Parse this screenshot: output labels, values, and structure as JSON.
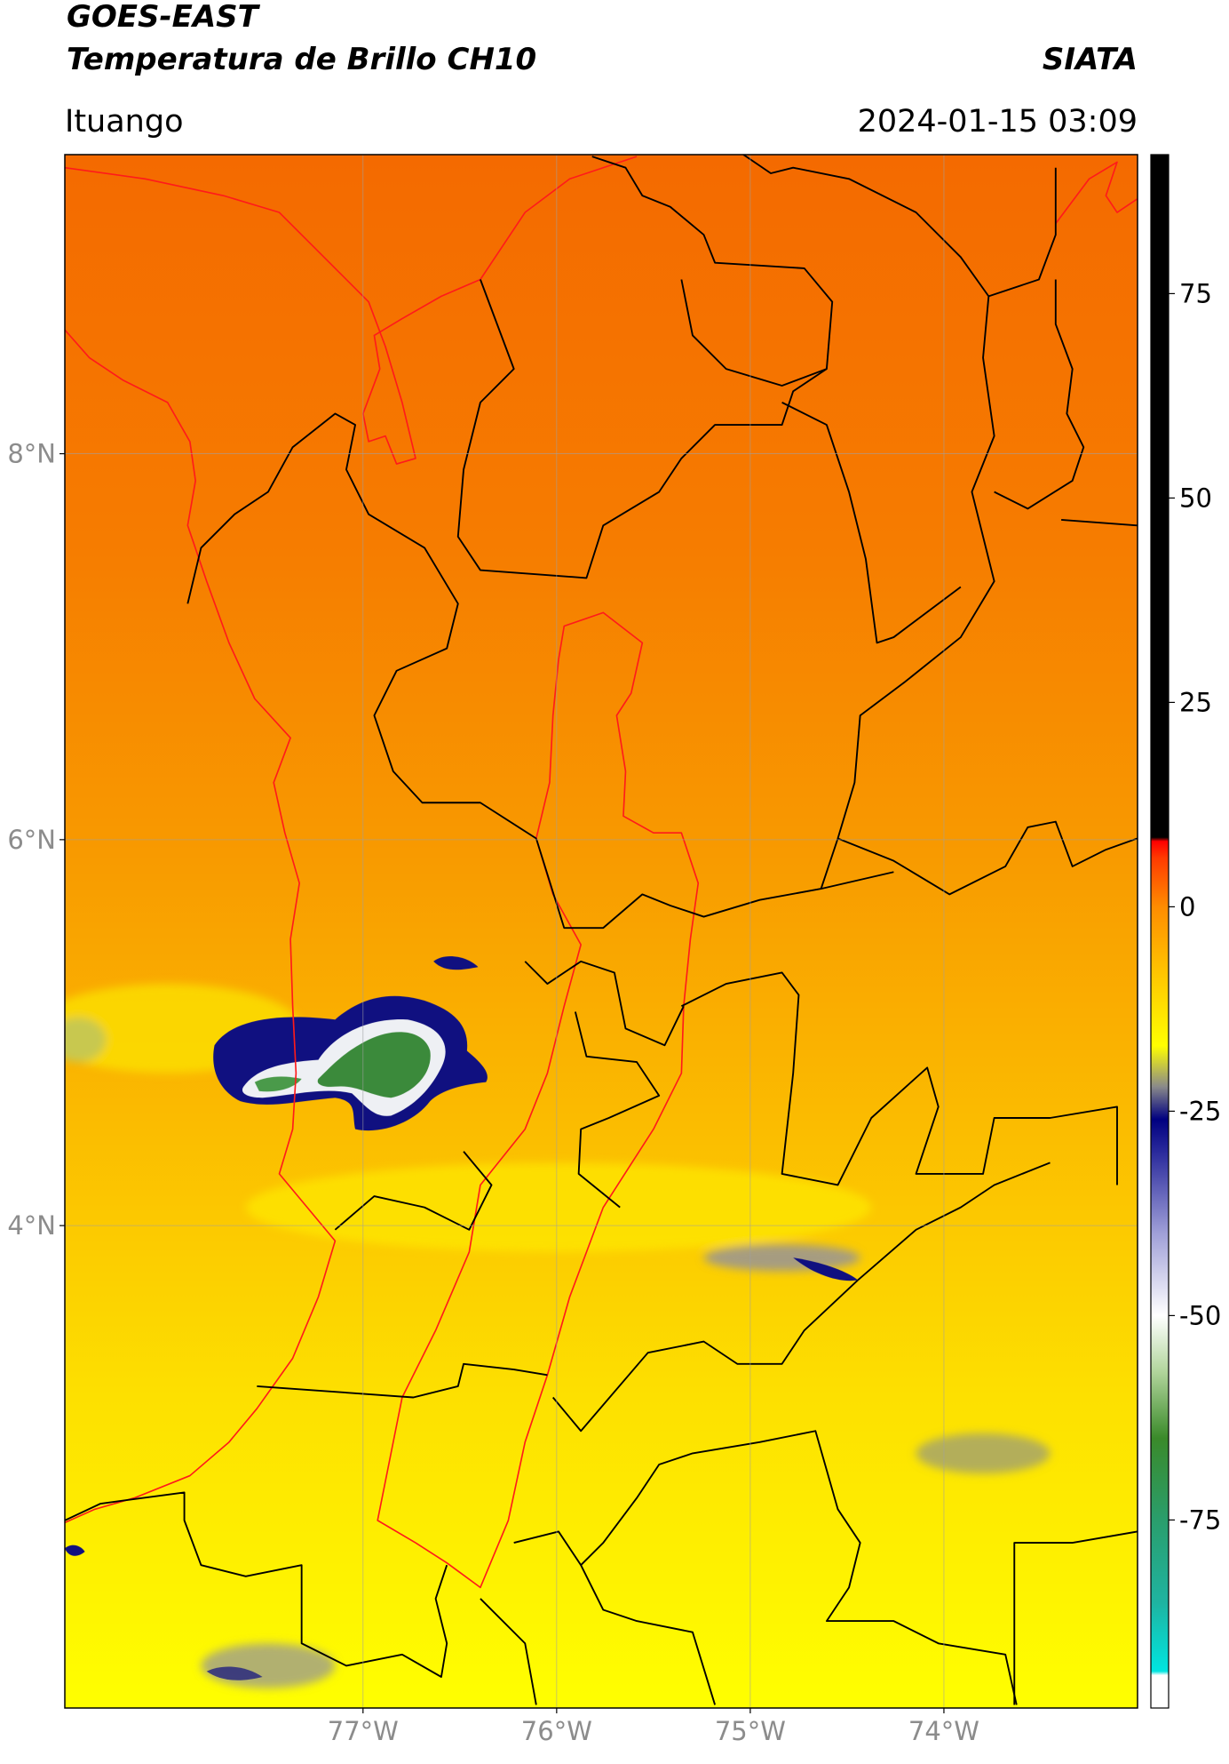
{
  "header": {
    "title_line1": "GOES-EAST",
    "title_line2": "Temperatura de Brillo CH10",
    "source": "SIATA",
    "location": "Ituango",
    "timestamp": "2024-01-15 03:09"
  },
  "map": {
    "extent": {
      "lon": [
        -78.54,
        -73.0
      ],
      "lat": [
        1.5,
        9.55
      ]
    },
    "lat_lines": [
      {
        "value": 8,
        "label": "8°N"
      },
      {
        "value": 6,
        "label": "6°N"
      },
      {
        "value": 4,
        "label": "4°N"
      }
    ],
    "lon_lines": [
      {
        "value": -77,
        "label": "77°W"
      },
      {
        "value": -76,
        "label": "76°W"
      },
      {
        "value": -75,
        "label": "75°W"
      },
      {
        "value": -74,
        "label": "74°W"
      }
    ]
  },
  "colorbar": {
    "lim": [
      -98,
      92
    ],
    "ticks": [
      75,
      50,
      25,
      0,
      -25,
      -50,
      -75
    ],
    "colormap": [
      {
        "value": -98,
        "color": "#ffffff"
      },
      {
        "value": -94,
        "color": "#ffffff"
      },
      {
        "value": -93.5,
        "color": "#00e5e0"
      },
      {
        "value": -85,
        "color": "#1fb3a0"
      },
      {
        "value": -75,
        "color": "#2a9e6c"
      },
      {
        "value": -65,
        "color": "#3a8a2a"
      },
      {
        "value": -57,
        "color": "#b0d49a"
      },
      {
        "value": -50,
        "color": "#ffffff"
      },
      {
        "value": -40,
        "color": "#a0a0d8"
      },
      {
        "value": -30,
        "color": "#2a2a9c"
      },
      {
        "value": -26,
        "color": "#000080"
      },
      {
        "value": -22,
        "color": "#8a8a8a"
      },
      {
        "value": -17,
        "color": "#ffff00"
      },
      {
        "value": -8,
        "color": "#ffc400"
      },
      {
        "value": 0,
        "color": "#ff8c00"
      },
      {
        "value": 6,
        "color": "#ff3a00"
      },
      {
        "value": 8,
        "color": "#ff0000"
      },
      {
        "value": 8.5,
        "color": "#000000"
      },
      {
        "value": 92,
        "color": "#000000"
      }
    ]
  }
}
